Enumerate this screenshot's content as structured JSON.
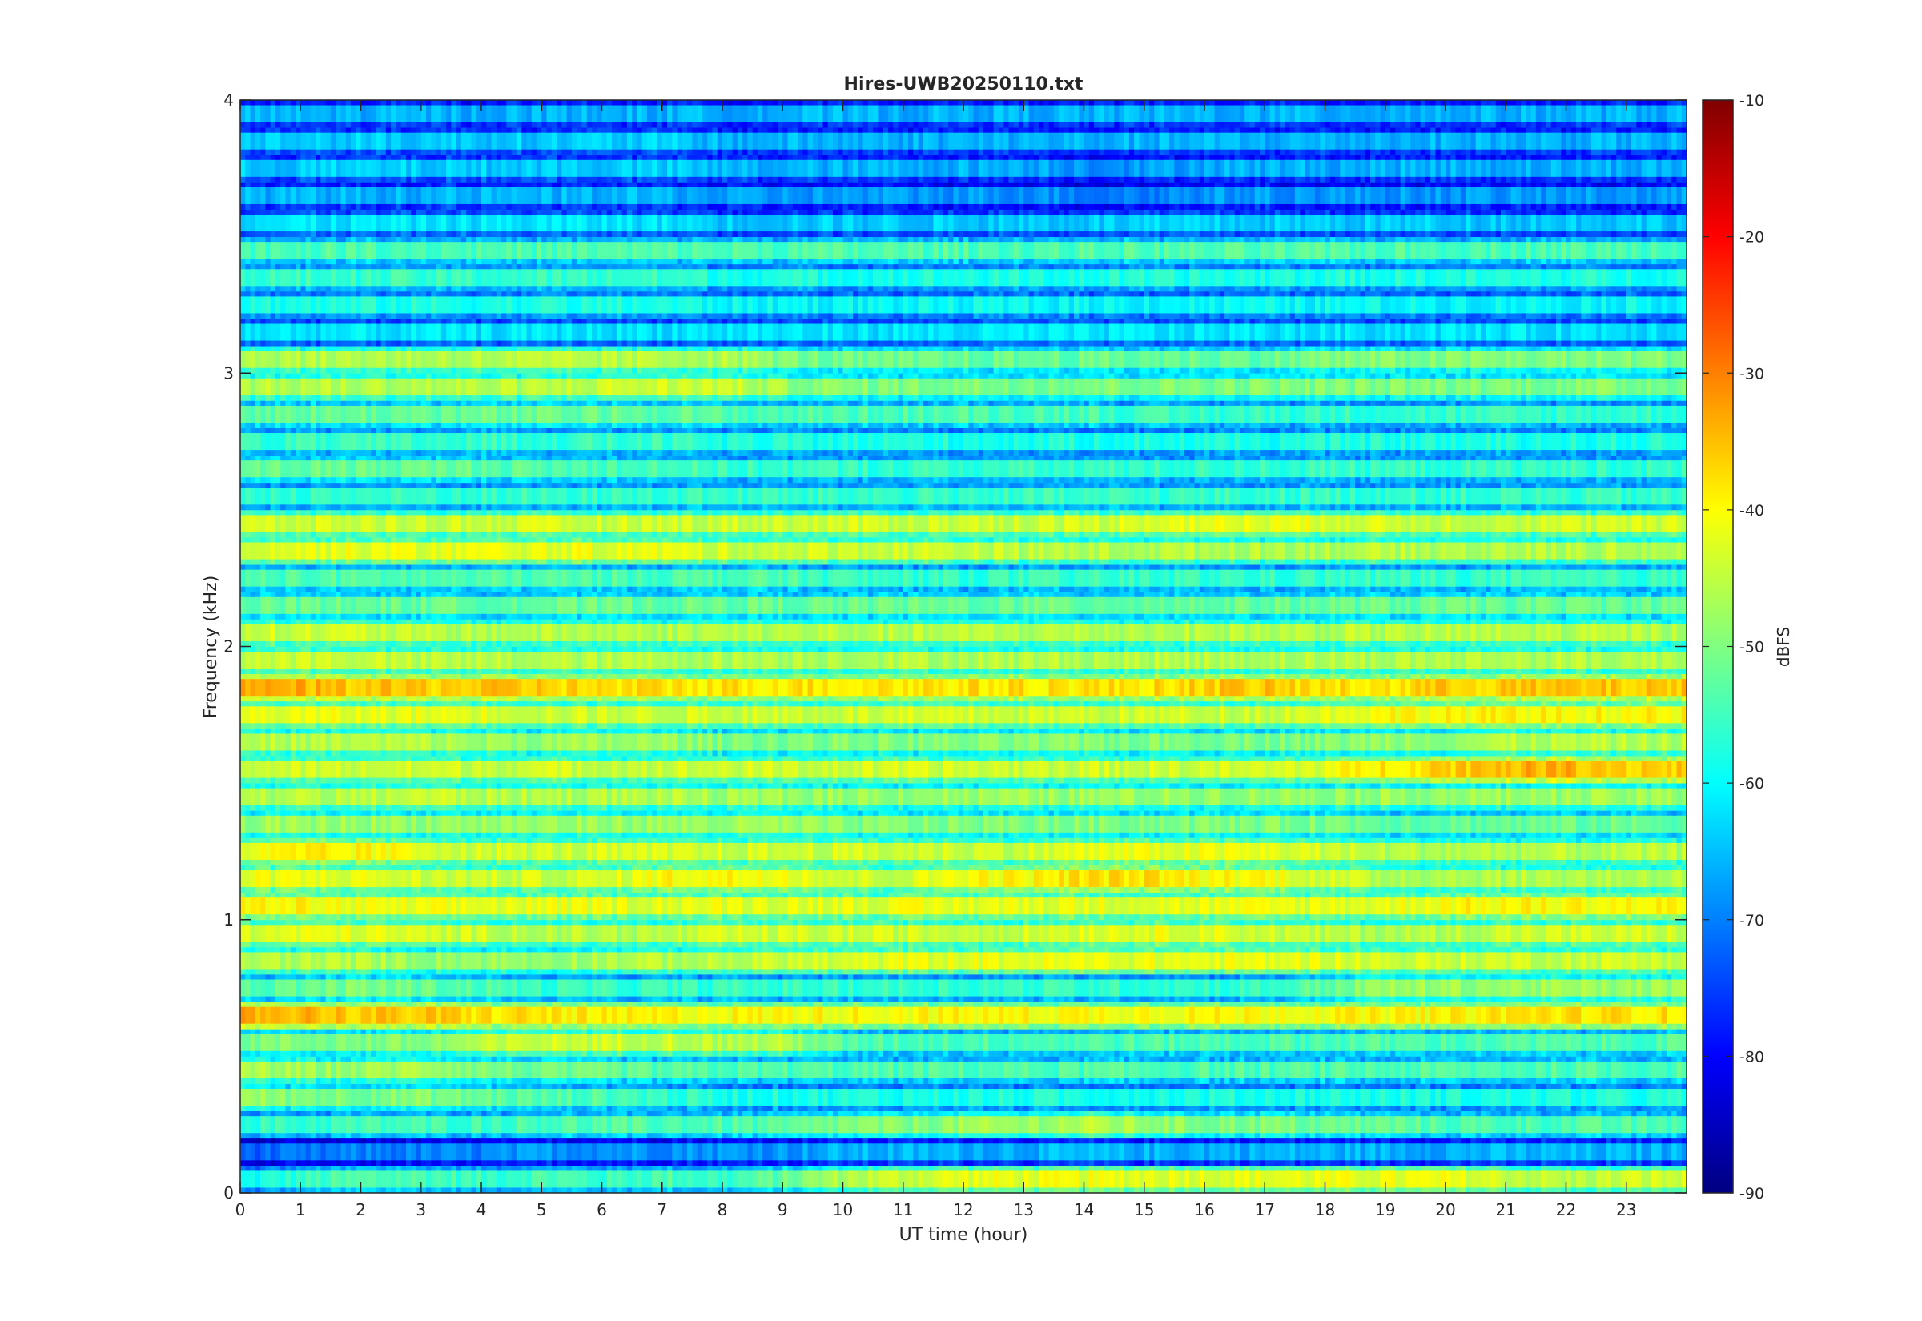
{
  "chart_data": {
    "type": "heatmap",
    "title": "Hires-UWB20250110.txt",
    "xlabel": "UT time (hour)",
    "ylabel": "Frequency (kHz)",
    "colorbar_label": "dBFS",
    "xlim": [
      0,
      24
    ],
    "ylim": [
      0,
      4
    ],
    "clim": [
      -90,
      -10
    ],
    "colormap": "jet",
    "x_ticks": [
      0,
      1,
      2,
      3,
      4,
      5,
      6,
      7,
      8,
      9,
      10,
      11,
      12,
      13,
      14,
      15,
      16,
      17,
      18,
      19,
      20,
      21,
      22,
      23
    ],
    "x_tick_labels": [
      "0",
      "1",
      "2",
      "3",
      "4",
      "5",
      "6",
      "7",
      "8",
      "9",
      "10",
      "11",
      "12",
      "13",
      "14",
      "15",
      "16",
      "17",
      "18",
      "19",
      "20",
      "21",
      "22",
      "23"
    ],
    "y_ticks": [
      0,
      1,
      2,
      3,
      4
    ],
    "y_tick_labels": [
      "0",
      "1",
      "2",
      "3",
      "4"
    ],
    "c_ticks": [
      -90,
      -80,
      -70,
      -60,
      -50,
      -40,
      -30,
      -20,
      -10
    ],
    "c_tick_labels": [
      "-90",
      "-80",
      "-70",
      "-60",
      "-50",
      "-40",
      "-30",
      "-20",
      "-10"
    ],
    "frequency_bands_khz": [
      0.05,
      0.15,
      0.25,
      0.35,
      0.45,
      0.55,
      0.65,
      0.75,
      0.85,
      0.95,
      1.05,
      1.15,
      1.25,
      1.35,
      1.45,
      1.55,
      1.65,
      1.75,
      1.85,
      1.95,
      2.05,
      2.15,
      2.25,
      2.35,
      2.45,
      2.55,
      2.65,
      2.75,
      2.85,
      2.95,
      3.05,
      3.15,
      3.25,
      3.35,
      3.45,
      3.55,
      3.65,
      3.75,
      3.85,
      3.95
    ],
    "band_levels_dbfs": [
      -50,
      -64,
      -54,
      -58,
      -52,
      -50,
      -36,
      -54,
      -44,
      -44,
      -40,
      -42,
      -44,
      -50,
      -47,
      -40,
      -48,
      -43,
      -38,
      -46,
      -46,
      -52,
      -55,
      -44,
      -44,
      -55,
      -55,
      -58,
      -54,
      -48,
      -50,
      -62,
      -60,
      -58,
      -54,
      -63,
      -68,
      -66,
      -65,
      -66
    ],
    "band_samples_dbfs": [
      [
        -60,
        -56,
        -54,
        -54,
        -56,
        -54,
        -56,
        -54,
        -56,
        -52,
        -46,
        -44,
        -42,
        -42,
        -42,
        -42,
        -42,
        -42,
        -42,
        -42,
        -42,
        -44,
        -46,
        -44
      ],
      [
        -72,
        -72,
        -70,
        -70,
        -70,
        -68,
        -68,
        -68,
        -68,
        -68,
        -66,
        -66,
        -66,
        -66,
        -66,
        -66,
        -66,
        -66,
        -66,
        -66,
        -66,
        -66,
        -66,
        -66
      ],
      [
        -56,
        -56,
        -55,
        -55,
        -55,
        -54,
        -54,
        -54,
        -54,
        -54,
        -50,
        -50,
        -48,
        -48,
        -46,
        -48,
        -50,
        -50,
        -52,
        -52,
        -54,
        -54,
        -54,
        -54
      ],
      [
        -48,
        -50,
        -50,
        -50,
        -52,
        -54,
        -54,
        -56,
        -58,
        -58,
        -58,
        -58,
        -58,
        -58,
        -58,
        -58,
        -58,
        -58,
        -58,
        -58,
        -58,
        -58,
        -58,
        -58
      ],
      [
        -46,
        -48,
        -48,
        -46,
        -50,
        -52,
        -52,
        -54,
        -54,
        -54,
        -54,
        -54,
        -54,
        -54,
        -54,
        -54,
        -54,
        -54,
        -54,
        -54,
        -54,
        -54,
        -54,
        -54
      ],
      [
        -50,
        -50,
        -50,
        -50,
        -46,
        -44,
        -44,
        -44,
        -46,
        -46,
        -54,
        -54,
        -54,
        -54,
        -54,
        -54,
        -54,
        -54,
        -54,
        -54,
        -54,
        -54,
        -54,
        -54
      ],
      [
        -34,
        -34,
        -36,
        -36,
        -38,
        -38,
        -40,
        -40,
        -40,
        -40,
        -40,
        -40,
        -40,
        -40,
        -40,
        -40,
        -40,
        -40,
        -40,
        -40,
        -40,
        -38,
        -38,
        -38
      ],
      [
        -54,
        -52,
        -50,
        -52,
        -54,
        -56,
        -56,
        -56,
        -56,
        -56,
        -56,
        -56,
        -56,
        -56,
        -56,
        -56,
        -56,
        -56,
        -52,
        -48,
        -48,
        -48,
        -48,
        -48
      ],
      [
        -46,
        -46,
        -46,
        -48,
        -48,
        -48,
        -46,
        -46,
        -46,
        -44,
        -44,
        -42,
        -42,
        -42,
        -42,
        -42,
        -42,
        -42,
        -42,
        -44,
        -44,
        -44,
        -44,
        -44
      ],
      [
        -44,
        -42,
        -42,
        -44,
        -44,
        -46,
        -46,
        -46,
        -44,
        -44,
        -44,
        -44,
        -44,
        -44,
        -42,
        -42,
        -42,
        -44,
        -46,
        -46,
        -46,
        -44,
        -44,
        -44
      ],
      [
        -40,
        -40,
        -42,
        -42,
        -42,
        -42,
        -42,
        -42,
        -42,
        -42,
        -42,
        -42,
        -42,
        -42,
        -42,
        -42,
        -42,
        -42,
        -42,
        -42,
        -40,
        -40,
        -40,
        -40
      ],
      [
        -42,
        -42,
        -42,
        -44,
        -44,
        -44,
        -44,
        -40,
        -40,
        -40,
        -44,
        -44,
        -40,
        -40,
        -38,
        -38,
        -40,
        -40,
        -44,
        -46,
        -46,
        -46,
        -46,
        -46
      ],
      [
        -42,
        -40,
        -40,
        -42,
        -44,
        -44,
        -44,
        -44,
        -44,
        -44,
        -44,
        -44,
        -44,
        -44,
        -42,
        -42,
        -42,
        -42,
        -44,
        -46,
        -46,
        -46,
        -46,
        -46
      ],
      [
        -48,
        -48,
        -48,
        -48,
        -48,
        -48,
        -48,
        -48,
        -48,
        -48,
        -50,
        -50,
        -50,
        -50,
        -50,
        -50,
        -50,
        -50,
        -50,
        -52,
        -52,
        -52,
        -52,
        -52
      ],
      [
        -46,
        -46,
        -46,
        -44,
        -46,
        -46,
        -46,
        -46,
        -48,
        -48,
        -48,
        -48,
        -48,
        -48,
        -48,
        -48,
        -48,
        -48,
        -48,
        -48,
        -48,
        -48,
        -48,
        -48
      ],
      [
        -44,
        -44,
        -44,
        -44,
        -44,
        -44,
        -44,
        -44,
        -44,
        -44,
        -44,
        -44,
        -44,
        -44,
        -44,
        -44,
        -44,
        -44,
        -42,
        -38,
        -36,
        -34,
        -34,
        -36
      ],
      [
        -46,
        -46,
        -46,
        -46,
        -48,
        -48,
        -48,
        -48,
        -50,
        -50,
        -50,
        -50,
        -50,
        -50,
        -50,
        -50,
        -50,
        -50,
        -50,
        -48,
        -48,
        -46,
        -46,
        -46
      ],
      [
        -42,
        -42,
        -42,
        -42,
        -42,
        -44,
        -44,
        -44,
        -44,
        -44,
        -44,
        -44,
        -44,
        -44,
        -44,
        -44,
        -44,
        -44,
        -42,
        -40,
        -40,
        -40,
        -40,
        -40
      ],
      [
        -34,
        -34,
        -36,
        -36,
        -36,
        -36,
        -38,
        -38,
        -38,
        -38,
        -38,
        -38,
        -38,
        -38,
        -38,
        -38,
        -36,
        -36,
        -38,
        -38,
        -36,
        -36,
        -36,
        -36
      ],
      [
        -44,
        -44,
        -44,
        -46,
        -46,
        -46,
        -46,
        -46,
        -46,
        -46,
        -46,
        -46,
        -46,
        -46,
        -46,
        -46,
        -46,
        -46,
        -46,
        -46,
        -46,
        -46,
        -46,
        -46
      ],
      [
        -44,
        -44,
        -44,
        -46,
        -46,
        -46,
        -46,
        -46,
        -46,
        -46,
        -46,
        -46,
        -46,
        -46,
        -46,
        -46,
        -46,
        -46,
        -46,
        -46,
        -46,
        -46,
        -46,
        -46
      ],
      [
        -52,
        -52,
        -52,
        -52,
        -52,
        -52,
        -52,
        -52,
        -52,
        -52,
        -52,
        -52,
        -52,
        -52,
        -52,
        -52,
        -52,
        -52,
        -52,
        -52,
        -52,
        -52,
        -52,
        -52
      ],
      [
        -54,
        -54,
        -54,
        -54,
        -54,
        -54,
        -54,
        -54,
        -54,
        -54,
        -56,
        -56,
        -56,
        -56,
        -56,
        -56,
        -56,
        -56,
        -56,
        -56,
        -56,
        -56,
        -56,
        -56
      ],
      [
        -42,
        -42,
        -42,
        -42,
        -42,
        -42,
        -42,
        -42,
        -44,
        -44,
        -44,
        -44,
        -44,
        -46,
        -46,
        -46,
        -46,
        -46,
        -46,
        -46,
        -46,
        -46,
        -46,
        -46
      ],
      [
        -44,
        -44,
        -44,
        -44,
        -44,
        -44,
        -44,
        -44,
        -44,
        -44,
        -44,
        -44,
        -44,
        -44,
        -44,
        -42,
        -42,
        -42,
        -42,
        -44,
        -44,
        -44,
        -44,
        -44
      ],
      [
        -56,
        -56,
        -56,
        -56,
        -56,
        -56,
        -56,
        -56,
        -56,
        -56,
        -56,
        -56,
        -56,
        -56,
        -56,
        -56,
        -56,
        -56,
        -56,
        -56,
        -56,
        -56,
        -56,
        -56
      ],
      [
        -52,
        -52,
        -52,
        -52,
        -52,
        -54,
        -54,
        -54,
        -56,
        -56,
        -56,
        -56,
        -56,
        -56,
        -56,
        -56,
        -56,
        -56,
        -56,
        -56,
        -56,
        -56,
        -56,
        -56
      ],
      [
        -56,
        -56,
        -56,
        -56,
        -56,
        -56,
        -56,
        -56,
        -58,
        -58,
        -58,
        -58,
        -58,
        -58,
        -58,
        -58,
        -58,
        -58,
        -58,
        -58,
        -58,
        -58,
        -58,
        -58
      ],
      [
        -52,
        -52,
        -52,
        -52,
        -52,
        -52,
        -52,
        -52,
        -54,
        -54,
        -54,
        -54,
        -54,
        -54,
        -54,
        -56,
        -56,
        -56,
        -56,
        -56,
        -56,
        -56,
        -56,
        -56
      ],
      [
        -46,
        -46,
        -46,
        -46,
        -46,
        -46,
        -44,
        -44,
        -44,
        -48,
        -50,
        -50,
        -50,
        -50,
        -50,
        -50,
        -50,
        -50,
        -50,
        -50,
        -50,
        -50,
        -50,
        -50
      ],
      [
        -46,
        -46,
        -46,
        -46,
        -46,
        -46,
        -46,
        -46,
        -46,
        -50,
        -52,
        -52,
        -52,
        -52,
        -52,
        -52,
        -52,
        -52,
        -50,
        -50,
        -50,
        -50,
        -50,
        -50
      ],
      [
        -62,
        -62,
        -62,
        -62,
        -62,
        -62,
        -62,
        -62,
        -62,
        -62,
        -62,
        -62,
        -62,
        -62,
        -62,
        -62,
        -62,
        -62,
        -62,
        -62,
        -62,
        -62,
        -62,
        -62
      ],
      [
        -58,
        -58,
        -58,
        -58,
        -58,
        -58,
        -58,
        -58,
        -60,
        -60,
        -60,
        -60,
        -60,
        -60,
        -60,
        -60,
        -60,
        -60,
        -60,
        -60,
        -60,
        -60,
        -60,
        -60
      ],
      [
        -56,
        -56,
        -56,
        -56,
        -56,
        -56,
        -56,
        -56,
        -58,
        -58,
        -58,
        -58,
        -58,
        -58,
        -58,
        -58,
        -58,
        -58,
        -58,
        -58,
        -58,
        -58,
        -58,
        -58
      ],
      [
        -54,
        -54,
        -54,
        -54,
        -54,
        -54,
        -54,
        -54,
        -54,
        -54,
        -54,
        -54,
        -54,
        -54,
        -54,
        -54,
        -54,
        -54,
        -54,
        -54,
        -54,
        -54,
        -54,
        -54
      ],
      [
        -62,
        -62,
        -62,
        -62,
        -62,
        -62,
        -62,
        -62,
        -64,
        -64,
        -64,
        -64,
        -64,
        -64,
        -64,
        -64,
        -64,
        -64,
        -64,
        -64,
        -64,
        -64,
        -64,
        -64
      ],
      [
        -66,
        -66,
        -66,
        -66,
        -66,
        -66,
        -66,
        -66,
        -68,
        -68,
        -68,
        -68,
        -68,
        -68,
        -70,
        -70,
        -68,
        -68,
        -68,
        -68,
        -68,
        -68,
        -68,
        -68
      ],
      [
        -64,
        -64,
        -64,
        -64,
        -64,
        -64,
        -64,
        -64,
        -66,
        -66,
        -66,
        -66,
        -66,
        -66,
        -68,
        -68,
        -66,
        -66,
        -66,
        -66,
        -66,
        -66,
        -66,
        -66
      ],
      [
        -64,
        -64,
        -64,
        -64,
        -64,
        -64,
        -64,
        -64,
        -66,
        -66,
        -66,
        -66,
        -66,
        -66,
        -66,
        -66,
        -66,
        -66,
        -66,
        -66,
        -66,
        -66,
        -66,
        -66
      ],
      [
        -66,
        -66,
        -66,
        -66,
        -66,
        -66,
        -66,
        -66,
        -66,
        -66,
        -66,
        -66,
        -66,
        -66,
        -66,
        -66,
        -66,
        -66,
        -66,
        -66,
        -66,
        -66,
        -66,
        -66
      ]
    ]
  }
}
